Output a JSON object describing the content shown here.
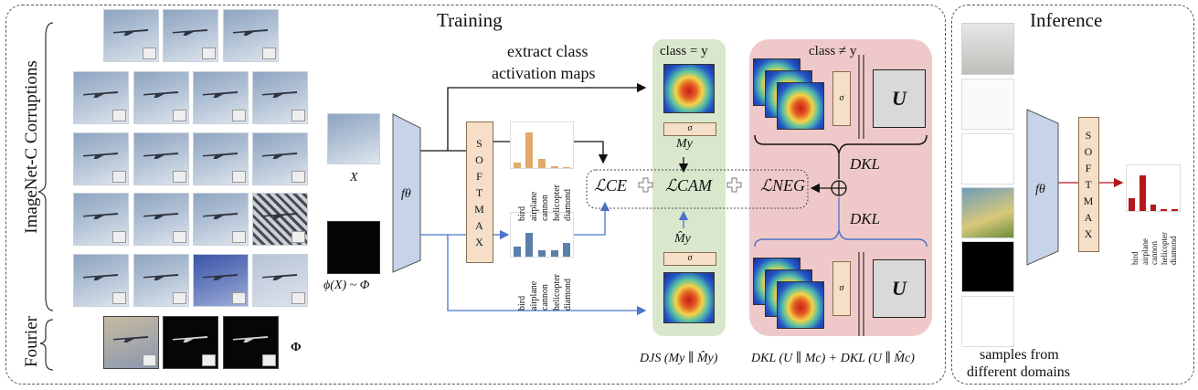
{
  "headings": {
    "training": "Training",
    "inference": "Inference",
    "corruptions": "ImageNet-C Corruptions",
    "fourier": "Fourier"
  },
  "labels": {
    "x": "X",
    "phi_x": "ϕ(X) ~ Φ",
    "phi": "Φ",
    "f_theta": "fθ",
    "f_theta_inf": "fθ",
    "extract_line1": "extract class",
    "extract_line2": "activation maps",
    "class_eq": "class = y",
    "class_neq": "class ≠ y",
    "m_y": "My",
    "m_hat_y": "M̂y",
    "sigma": "σ",
    "l_ce": "ℒCE",
    "l_cam": "ℒCAM",
    "l_neg": "ℒNEG",
    "dkl_top": "DKL",
    "dkl_bottom": "DKL",
    "u_top": "U",
    "u_bottom": "U",
    "djs_formula": "DJS (My ∥ M̂y)",
    "dkl_formula": "DKL (U ∥ Mc) + DKL (U ∥ M̂c)",
    "samples_line1": "samples from",
    "samples_line2": "different domains"
  },
  "softmax_letters": [
    "S",
    "O",
    "F",
    "T",
    "M",
    "A",
    "X"
  ],
  "categories": [
    "bird",
    "airplane",
    "cannon",
    "helicopter",
    "diamond"
  ],
  "chart_data": [
    {
      "type": "bar",
      "categories": [
        "bird",
        "airplane",
        "cannon",
        "helicopter",
        "diamond"
      ],
      "values": [
        0.12,
        0.85,
        0.22,
        0.04,
        0.03
      ]
    },
    {
      "type": "bar",
      "categories": [
        "bird",
        "airplane",
        "cannon",
        "helicopter",
        "diamond"
      ],
      "values": [
        0.25,
        0.6,
        0.15,
        0.15,
        0.35
      ]
    },
    {
      "type": "bar",
      "categories": [
        "bird",
        "airplane",
        "cannon",
        "helicopter",
        "diamond"
      ],
      "values": [
        0.3,
        0.85,
        0.15,
        0.05,
        0.05
      ]
    }
  ],
  "colors": {
    "green_panel": "#d9e8cc",
    "pink_panel": "#efc9c9",
    "blue_arrow": "#4a74c9",
    "softmax_fill": "#f5dfc8",
    "f_fill": "#c7d3e8",
    "bar_orange": "#e2a96a",
    "bar_blue": "#5a7fab",
    "bar_red": "#b4171d"
  }
}
